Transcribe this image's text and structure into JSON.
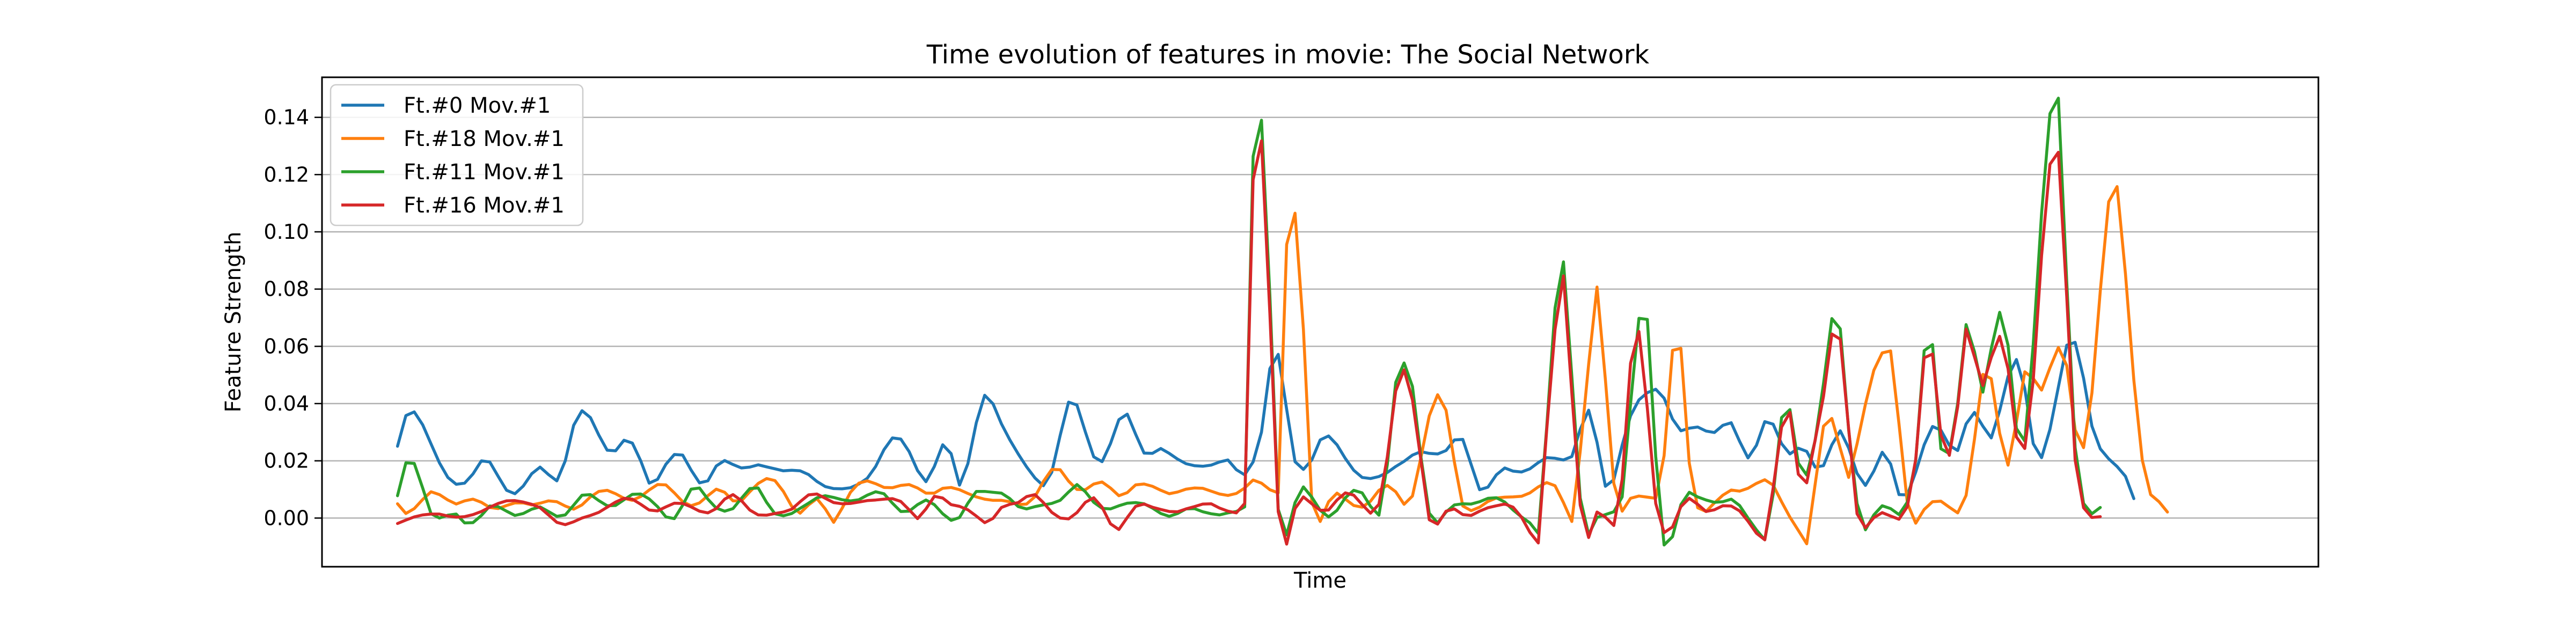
{
  "chart_data": {
    "type": "line",
    "title": "Time evolution of features in movie: The Social Network",
    "xlabel": "Time",
    "ylabel": "Feature Strength",
    "ylim": [
      -0.017,
      0.154
    ],
    "yticks": [
      0.0,
      0.02,
      0.04,
      0.06,
      0.08,
      0.1,
      0.12,
      0.14
    ],
    "ytick_labels": [
      "0.00",
      "0.02",
      "0.04",
      "0.06",
      "0.08",
      "0.10",
      "0.12",
      "0.14"
    ],
    "xlim": [
      -9,
      229
    ],
    "grid": "horizontal",
    "legend_position": "upper-left",
    "series": [
      {
        "name": "Ft.#0 Mov.#1",
        "color": "#1f77b4",
        "values": [
          0.0251,
          0.0358,
          0.0371,
          0.0326,
          0.0259,
          0.0193,
          0.0142,
          0.0118,
          0.0122,
          0.0154,
          0.02,
          0.0196,
          0.0146,
          0.0097,
          0.0085,
          0.0112,
          0.0155,
          0.0178,
          0.0152,
          0.013,
          0.02,
          0.0324,
          0.0375,
          0.0351,
          0.029,
          0.0237,
          0.0235,
          0.0272,
          0.0262,
          0.02,
          0.0122,
          0.0135,
          0.0188,
          0.0222,
          0.022,
          0.0168,
          0.0123,
          0.013,
          0.0182,
          0.0201,
          0.0187,
          0.0175,
          0.0178,
          0.0186,
          0.0179,
          0.0172,
          0.0165,
          0.0167,
          0.0165,
          0.0152,
          0.0128,
          0.011,
          0.0103,
          0.0102,
          0.0106,
          0.0119,
          0.0139,
          0.018,
          0.0239,
          0.028,
          0.0276,
          0.0232,
          0.0166,
          0.0127,
          0.018,
          0.0256,
          0.0225,
          0.0115,
          0.019,
          0.0333,
          0.0429,
          0.0399,
          0.0329,
          0.0273,
          0.0224,
          0.0179,
          0.014,
          0.0113,
          0.016,
          0.0289,
          0.0405,
          0.0395,
          0.0301,
          0.0214,
          0.0197,
          0.026,
          0.0344,
          0.0363,
          0.0293,
          0.0227,
          0.0226,
          0.0243,
          0.0226,
          0.0206,
          0.019,
          0.0183,
          0.0181,
          0.0185,
          0.0196,
          0.0203,
          0.0169,
          0.0151,
          0.0196,
          0.03,
          0.0522,
          0.0572,
          0.038,
          0.0197,
          0.017,
          0.0203,
          0.0273,
          0.0287,
          0.0256,
          0.0208,
          0.0167,
          0.0142,
          0.0138,
          0.0145,
          0.0159,
          0.018,
          0.0198,
          0.022,
          0.0232,
          0.0226,
          0.0224,
          0.0236,
          0.0273,
          0.0275,
          0.0187,
          0.0099,
          0.0108,
          0.0151,
          0.0175,
          0.0164,
          0.0161,
          0.0172,
          0.0194,
          0.0211,
          0.0209,
          0.0203,
          0.0215,
          0.031,
          0.0377,
          0.0265,
          0.0111,
          0.0134,
          0.0255,
          0.0357,
          0.0413,
          0.0438,
          0.045,
          0.0419,
          0.0346,
          0.0305,
          0.0314,
          0.0318,
          0.0304,
          0.0299,
          0.0324,
          0.0333,
          0.0268,
          0.021,
          0.0254,
          0.0337,
          0.0328,
          0.026,
          0.0224,
          0.0244,
          0.0233,
          0.0178,
          0.0183,
          0.0256,
          0.0305,
          0.0245,
          0.0156,
          0.0114,
          0.0164,
          0.023,
          0.0189,
          0.0082,
          0.0081,
          0.0161,
          0.0256,
          0.032,
          0.0307,
          0.0254,
          0.0236,
          0.0329,
          0.0369,
          0.0321,
          0.028,
          0.0375,
          0.0495,
          0.0554,
          0.0452,
          0.026,
          0.0211,
          0.031,
          0.0458,
          0.0604,
          0.0614,
          0.0489,
          0.0321,
          0.0242,
          0.0207,
          0.018,
          0.0146,
          0.0068
        ]
      },
      {
        "name": "Ft.#18 Mov.#1",
        "color": "#ff7f0e",
        "values": [
          0.005,
          0.0016,
          0.0033,
          0.0065,
          0.0092,
          0.0082,
          0.0063,
          0.0049,
          0.006,
          0.0066,
          0.0055,
          0.0037,
          0.0033,
          0.0044,
          0.0053,
          0.0053,
          0.0046,
          0.0052,
          0.006,
          0.0057,
          0.0042,
          0.0031,
          0.0046,
          0.0074,
          0.0093,
          0.0097,
          0.0085,
          0.0069,
          0.0062,
          0.0075,
          0.0098,
          0.0117,
          0.0116,
          0.0088,
          0.0057,
          0.0043,
          0.0053,
          0.0078,
          0.0101,
          0.009,
          0.006,
          0.006,
          0.0092,
          0.0121,
          0.0138,
          0.0131,
          0.0093,
          0.0041,
          0.0017,
          0.0046,
          0.0068,
          0.0032,
          -0.0015,
          0.0034,
          0.009,
          0.0122,
          0.013,
          0.012,
          0.0107,
          0.0106,
          0.0114,
          0.0117,
          0.0105,
          0.0087,
          0.0087,
          0.0104,
          0.0107,
          0.0099,
          0.0086,
          0.0074,
          0.0066,
          0.0062,
          0.0062,
          0.0057,
          0.0047,
          0.0049,
          0.0075,
          0.0128,
          0.017,
          0.0169,
          0.0129,
          0.01,
          0.0099,
          0.0119,
          0.0126,
          0.0105,
          0.0078,
          0.0089,
          0.0116,
          0.0119,
          0.0111,
          0.0097,
          0.0085,
          0.0091,
          0.0101,
          0.0105,
          0.0104,
          0.0094,
          0.0084,
          0.0079,
          0.0086,
          0.0105,
          0.0133,
          0.0122,
          0.0099,
          0.0088,
          0.0956,
          0.1065,
          0.066,
          0.0055,
          -0.0012,
          0.0057,
          0.0087,
          0.0066,
          0.0044,
          0.0038,
          0.0059,
          0.0097,
          0.0114,
          0.0092,
          0.0048,
          0.0077,
          0.0211,
          0.0357,
          0.0431,
          0.0377,
          0.0195,
          0.0042,
          0.0026,
          0.0038,
          0.0058,
          0.007,
          0.0073,
          0.0074,
          0.0076,
          0.0088,
          0.0109,
          0.0124,
          0.0113,
          0.0054,
          -0.0012,
          0.0233,
          0.0537,
          0.0807,
          0.0484,
          0.0121,
          0.0024,
          0.0069,
          0.0077,
          0.0073,
          0.0069,
          0.0218,
          0.0586,
          0.0593,
          0.0192,
          0.0036,
          0.0023,
          0.0053,
          0.008,
          0.0098,
          0.0094,
          0.0104,
          0.0121,
          0.0134,
          0.0115,
          0.0057,
          0.0003,
          -0.0043,
          -0.009,
          0.0117,
          0.0321,
          0.0348,
          0.0243,
          0.0142,
          0.0259,
          0.0398,
          0.0516,
          0.0577,
          0.0584,
          0.0329,
          0.0052,
          -0.0018,
          0.003,
          0.0057,
          0.0059,
          0.0038,
          0.0018,
          0.0079,
          0.0276,
          0.0502,
          0.0487,
          0.0296,
          0.0185,
          0.0336,
          0.0511,
          0.0488,
          0.0447,
          0.0525,
          0.0596,
          0.0533,
          0.0308,
          0.0246,
          0.0437,
          0.0794,
          0.1105,
          0.1158,
          0.0853,
          0.0482,
          0.0203,
          0.0082,
          0.0057,
          0.0021
        ]
      },
      {
        "name": "Ft.#11 Mov.#1",
        "color": "#2ca02c",
        "values": [
          0.0078,
          0.0193,
          0.0191,
          0.0105,
          0.0015,
          0.0,
          0.001,
          0.0014,
          -0.0017,
          -0.0016,
          0.0009,
          0.0042,
          0.004,
          0.0024,
          0.0009,
          0.0016,
          0.0031,
          0.0039,
          0.0023,
          0.0006,
          0.0011,
          0.0045,
          0.008,
          0.0082,
          0.0061,
          0.0043,
          0.0044,
          0.0064,
          0.0083,
          0.0084,
          0.0067,
          0.004,
          0.0004,
          -0.0002,
          0.0045,
          0.0101,
          0.0105,
          0.0066,
          0.0035,
          0.0024,
          0.0033,
          0.0069,
          0.0103,
          0.0105,
          0.0055,
          0.0015,
          0.0008,
          0.0016,
          0.0034,
          0.0052,
          0.0071,
          0.0078,
          0.0072,
          0.0064,
          0.006,
          0.0064,
          0.008,
          0.0092,
          0.0085,
          0.0052,
          0.0023,
          0.0024,
          0.0047,
          0.0063,
          0.0047,
          0.0015,
          -0.0008,
          0.0002,
          0.0052,
          0.0093,
          0.0093,
          0.009,
          0.0087,
          0.0068,
          0.004,
          0.0032,
          0.004,
          0.0046,
          0.0051,
          0.0062,
          0.0091,
          0.0117,
          0.0092,
          0.0055,
          0.0034,
          0.0032,
          0.0043,
          0.0052,
          0.0054,
          0.005,
          0.0035,
          0.0016,
          0.0006,
          0.0016,
          0.0032,
          0.0033,
          0.0022,
          0.0015,
          0.0011,
          0.0018,
          0.0023,
          0.0039,
          0.1264,
          0.139,
          0.0779,
          0.003,
          -0.0059,
          0.0054,
          0.0109,
          0.0073,
          0.0027,
          0.0004,
          0.0027,
          0.0071,
          0.0097,
          0.0088,
          0.0041,
          0.001,
          0.0186,
          0.0474,
          0.0542,
          0.046,
          0.0215,
          0.0017,
          -0.0017,
          0.0021,
          0.0046,
          0.005,
          0.0049,
          0.0057,
          0.0069,
          0.0071,
          0.0056,
          0.0028,
          0.0004,
          -0.0017,
          -0.0054,
          0.0316,
          0.0734,
          0.0895,
          0.0495,
          0.007,
          -0.0058,
          0.0002,
          0.0012,
          0.0022,
          0.0074,
          0.0399,
          0.0698,
          0.0694,
          0.0215,
          -0.0094,
          -0.0065,
          0.0047,
          0.009,
          0.0074,
          0.0063,
          0.0055,
          0.0057,
          0.0066,
          0.0044,
          0.0,
          -0.0041,
          -0.0076,
          0.0083,
          0.0351,
          0.0379,
          0.0192,
          0.015,
          0.0271,
          0.0469,
          0.0697,
          0.0661,
          0.0308,
          0.0051,
          -0.0041,
          0.0011,
          0.0043,
          0.0033,
          0.0012,
          0.0056,
          0.0201,
          0.0585,
          0.0606,
          0.0242,
          0.0225,
          0.0401,
          0.0676,
          0.0581,
          0.044,
          0.0592,
          0.0719,
          0.0604,
          0.0313,
          0.0269,
          0.0606,
          0.1065,
          0.1413,
          0.1467,
          0.0824,
          0.0246,
          0.0051,
          0.0015,
          0.0037
        ]
      },
      {
        "name": "Ft.#16 Mov.#1",
        "color": "#d62728",
        "values": [
          -0.0019,
          -0.0007,
          0.0004,
          0.0011,
          0.0014,
          0.0014,
          0.0007,
          0.0003,
          0.0005,
          0.0012,
          0.0023,
          0.0038,
          0.0051,
          0.006,
          0.0061,
          0.0056,
          0.0048,
          0.0036,
          0.0011,
          -0.0015,
          -0.0023,
          -0.0013,
          0.0,
          0.0009,
          0.002,
          0.0038,
          0.0056,
          0.0069,
          0.0066,
          0.0048,
          0.0028,
          0.0025,
          0.0039,
          0.0052,
          0.0051,
          0.0039,
          0.0024,
          0.0018,
          0.0033,
          0.0066,
          0.0082,
          0.0061,
          0.0028,
          0.0011,
          0.001,
          0.0016,
          0.0021,
          0.0031,
          0.0057,
          0.0081,
          0.0084,
          0.0069,
          0.0054,
          0.005,
          0.0051,
          0.0056,
          0.0061,
          0.0063,
          0.0066,
          0.0068,
          0.0058,
          0.0029,
          -0.0002,
          0.0032,
          0.0076,
          0.007,
          0.0047,
          0.0041,
          0.0029,
          0.0007,
          -0.0016,
          -0.0001,
          0.0037,
          0.0048,
          0.0054,
          0.0075,
          0.0082,
          0.0054,
          0.002,
          0.0,
          -0.0003,
          0.0019,
          0.0055,
          0.0071,
          0.0038,
          -0.002,
          -0.004,
          0.0002,
          0.0041,
          0.0049,
          0.0038,
          0.003,
          0.0023,
          0.0022,
          0.0032,
          0.004,
          0.0049,
          0.005,
          0.0035,
          0.0024,
          0.0018,
          0.0051,
          0.1182,
          0.1318,
          0.0715,
          0.0022,
          -0.0091,
          0.0033,
          0.0074,
          0.005,
          0.0027,
          0.0028,
          0.0063,
          0.0088,
          0.008,
          0.0047,
          0.0017,
          0.0048,
          0.0213,
          0.0444,
          0.0518,
          0.0413,
          0.0203,
          -0.0006,
          -0.0021,
          0.0024,
          0.0032,
          0.0012,
          0.0009,
          0.0024,
          0.0036,
          0.0043,
          0.0049,
          0.0038,
          0.0003,
          -0.005,
          -0.0087,
          0.0306,
          0.0659,
          0.0846,
          0.0436,
          0.0045,
          -0.0068,
          0.0021,
          0.0003,
          -0.0026,
          0.0135,
          0.0541,
          0.0652,
          0.0383,
          0.0051,
          -0.0051,
          -0.0031,
          0.004,
          0.0069,
          0.0048,
          0.0023,
          0.0029,
          0.0043,
          0.0042,
          0.0025,
          -0.0011,
          -0.0053,
          -0.0076,
          0.0105,
          0.0318,
          0.0369,
          0.0153,
          0.0123,
          0.0272,
          0.0425,
          0.0643,
          0.0625,
          0.0312,
          0.0015,
          -0.0034,
          0.0001,
          0.0019,
          0.0007,
          -0.0004,
          0.004,
          0.0206,
          0.056,
          0.0573,
          0.029,
          0.0219,
          0.0389,
          0.066,
          0.0563,
          0.0463,
          0.0561,
          0.0635,
          0.0522,
          0.0283,
          0.0243,
          0.048,
          0.0917,
          0.1236,
          0.1278,
          0.0772,
          0.0203,
          0.0036,
          0.0002,
          0.0005
        ]
      }
    ]
  }
}
